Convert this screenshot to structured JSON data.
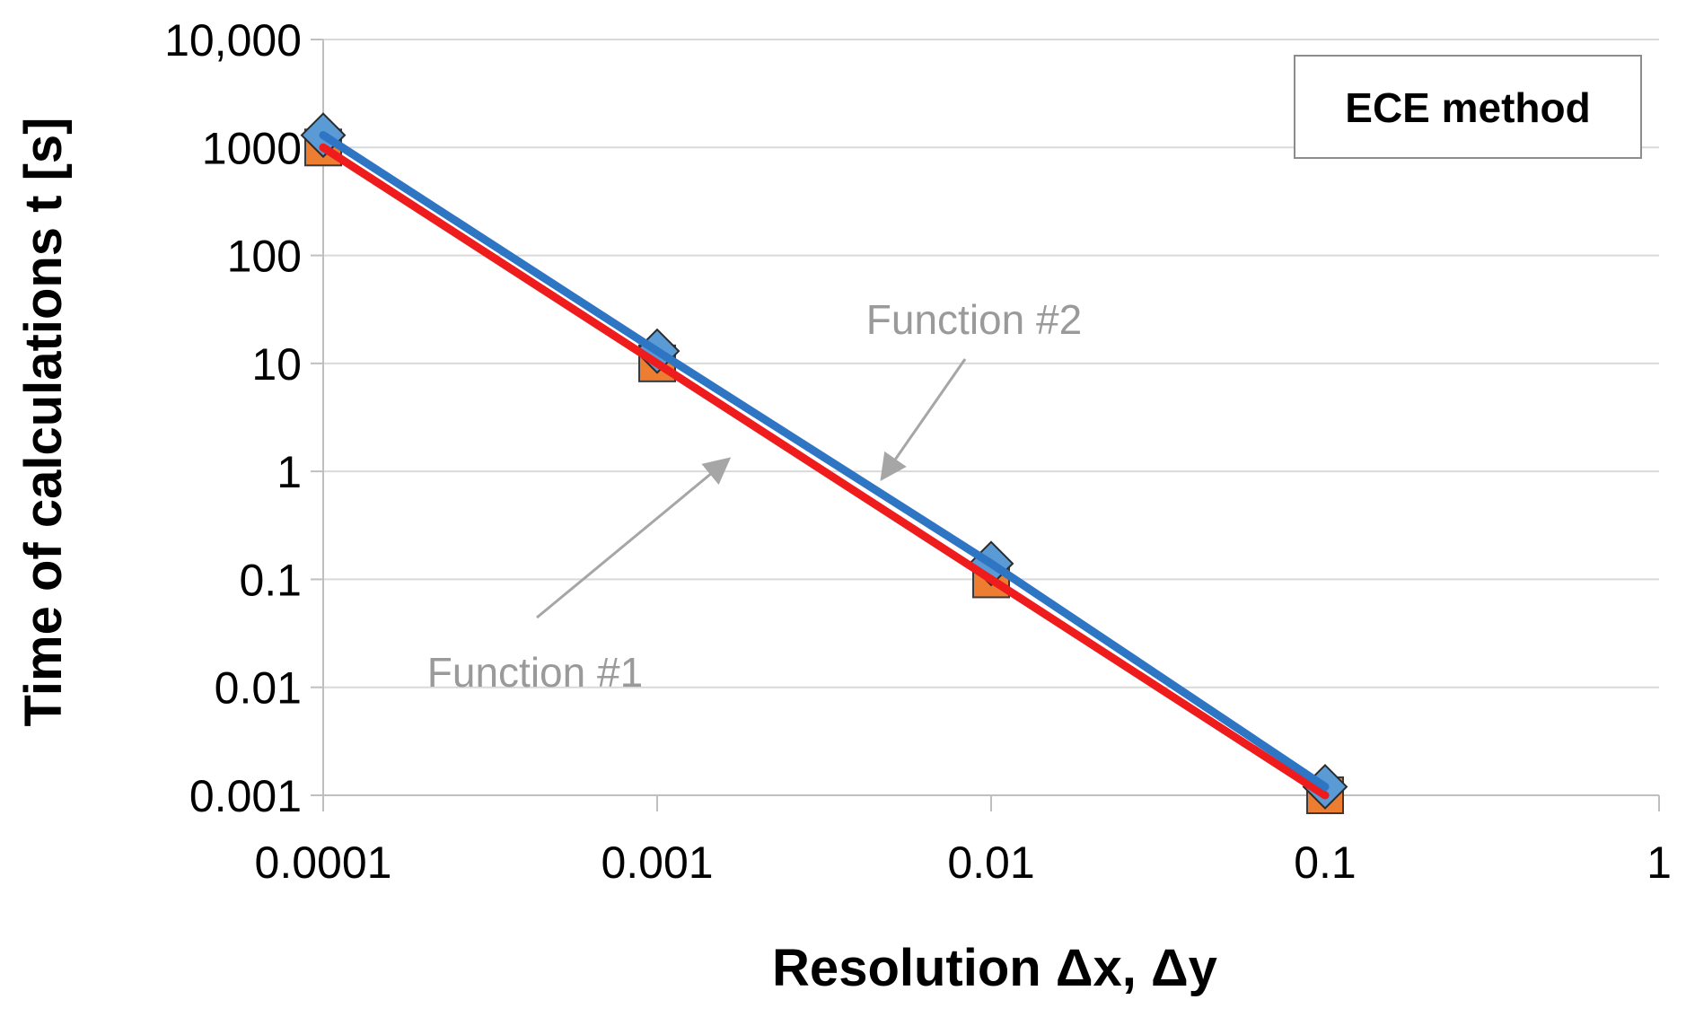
{
  "chart_data": {
    "type": "line",
    "x_scale": "log",
    "y_scale": "log",
    "x": [
      0.0001,
      0.001,
      0.01,
      0.1
    ],
    "xlim": [
      0.0001,
      1
    ],
    "ylim": [
      0.001,
      10000
    ],
    "xticks": [
      0.0001,
      0.001,
      0.01,
      0.1,
      1
    ],
    "yticks": [
      0.001,
      0.01,
      0.1,
      1,
      10,
      100,
      1000,
      10000
    ],
    "xtick_labels": [
      "0.0001",
      "0.001",
      "0.01",
      "0.1",
      "1"
    ],
    "ytick_labels": [
      "0.001",
      "0.01",
      "0.1",
      "1",
      "10",
      "100",
      "1000",
      "10,000"
    ],
    "xlabel": "Resolution Δx, Δy",
    "ylabel": "Time of calculations t [s]",
    "grid": true,
    "legend_box": "ECE method",
    "legend_position": "top-right",
    "series": [
      {
        "name": "Function #1",
        "marker": "square",
        "line_color": "#ee1c1c",
        "marker_color": "#ed7d31",
        "values": [
          1000,
          10,
          0.1,
          0.001
        ]
      },
      {
        "name": "Function #2",
        "marker": "diamond",
        "line_color": "#2e75c4",
        "marker_color": "#5b9bd5",
        "values": [
          1300,
          13,
          0.14,
          0.0012
        ]
      }
    ],
    "annotations": [
      {
        "text": "Function #1",
        "points_to": "Function #1",
        "near_x": 0.0015
      },
      {
        "text": "Function #2",
        "points_to": "Function #2",
        "near_x": 0.0042
      }
    ]
  }
}
